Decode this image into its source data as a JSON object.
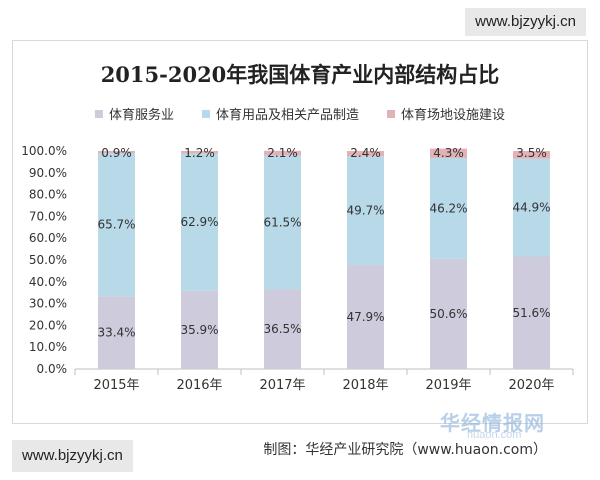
{
  "watermark_top": "www.bjzyykj.cn",
  "watermark_bottom": "www.bjzyykj.cn",
  "logo_watermark": "华经情报网",
  "logo_watermark_sub": "huaon.com",
  "credit": "制图：华经产业研究院（www.huaon.com）",
  "chart_data": {
    "type": "bar",
    "stacked": true,
    "title": "2015-2020年我国体育产业内部结构占比",
    "categories": [
      "2015年",
      "2016年",
      "2017年",
      "2018年",
      "2019年",
      "2020年"
    ],
    "ylim": [
      0,
      100
    ],
    "y_ticks": [
      "0.0%",
      "10.0%",
      "20.0%",
      "30.0%",
      "40.0%",
      "50.0%",
      "60.0%",
      "70.0%",
      "80.0%",
      "90.0%",
      "100.0%"
    ],
    "legend_position": "top",
    "grid": false,
    "series": [
      {
        "name": "体育服务业",
        "color": "#cdcbdc",
        "values": [
          33.4,
          35.9,
          36.5,
          47.9,
          50.6,
          51.6
        ],
        "labels": [
          "33.4%",
          "35.9%",
          "36.5%",
          "47.9%",
          "50.6%",
          "51.6%"
        ]
      },
      {
        "name": "体育用品及相关产品制造",
        "color": "#b7d9e8",
        "values": [
          65.7,
          62.9,
          61.5,
          49.7,
          46.2,
          44.9
        ],
        "labels": [
          "65.7%",
          "62.9%",
          "61.5%",
          "49.7%",
          "46.2%",
          "44.9%"
        ]
      },
      {
        "name": "体育场地设施建设",
        "color": "#e3b2b6",
        "values": [
          0.9,
          1.2,
          2.1,
          2.4,
          4.3,
          3.5
        ],
        "labels": [
          "0.9%",
          "1.2%",
          "2.1%",
          "2.4%",
          "4.3%",
          "3.5%"
        ]
      }
    ]
  }
}
